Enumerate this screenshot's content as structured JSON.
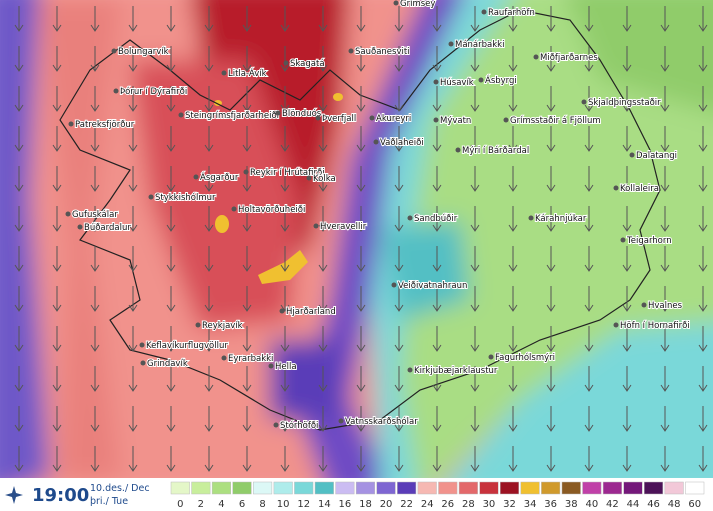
{
  "time": "19:00",
  "date": "10.des./ Dec",
  "weekday": "þri./ Tue",
  "places": [
    "Grímsey",
    "Raufarhöfn",
    "Bolungarvík",
    "Þórur í Dýrafirði",
    "Patreksfjörður",
    "Litla-Ávík",
    "Skagatá",
    "Sauðanesviti",
    "Mánárbakki",
    "Húsavík",
    "Ásbyrgi",
    "Miðfjarðarnes",
    "Steingrímsfjarðarheiði",
    "Blönduós",
    "Þverfjall",
    "Akureyri",
    "Mývatn",
    "Grímsstaðir á Fjöllum",
    "Skjaldþingsstaðir",
    "Vaðlaheiði",
    "Mýri í Bárðardal",
    "Dalatangi",
    "Ásgarður",
    "Reykir í Hrútafirði",
    "Kolka",
    "Kollaleira",
    "Stykkishólmur",
    "Gufuskálar",
    "Búðardalur",
    "Holtavörðuheiði",
    "Sandbúðir",
    "Kárahnjúkar",
    "Hveravellir",
    "Teigarhorn",
    "Veiðivatnahraun",
    "Hvalnes",
    "Höfn í Hornafirði",
    "Hjarðarland",
    "Reykjavík",
    "Keflavíkurflugvöllur",
    "Grindavík",
    "Eyrarbakki",
    "Hella",
    "Fagurhólsmýri",
    "Kirkjubæjarklaustur",
    "Stórhöfði",
    "Vatnsskarðshólar"
  ],
  "legend": {
    "values": [
      0,
      2,
      4,
      6,
      8,
      10,
      12,
      14,
      16,
      18,
      20,
      22,
      24,
      26,
      28,
      30,
      32,
      34,
      36,
      38,
      40,
      42,
      44,
      46,
      48,
      60
    ],
    "colors": [
      "#e4f7c8",
      "#c8ee9c",
      "#acdf80",
      "#90cc6a",
      "#dcf8f6",
      "#aeeceb",
      "#7ad8d9",
      "#52bfc4",
      "#cbbcf2",
      "#a592e2",
      "#7e66d2",
      "#5a3cb8",
      "#f6b8b2",
      "#f1928c",
      "#e3686a",
      "#c8323c",
      "#9c1222",
      "#f0c030",
      "#d09a2c",
      "#8a5a22",
      "#c040a8",
      "#9c2890",
      "#74187a",
      "#4c1258",
      "#f2c8d8",
      "#ffffff"
    ]
  }
}
